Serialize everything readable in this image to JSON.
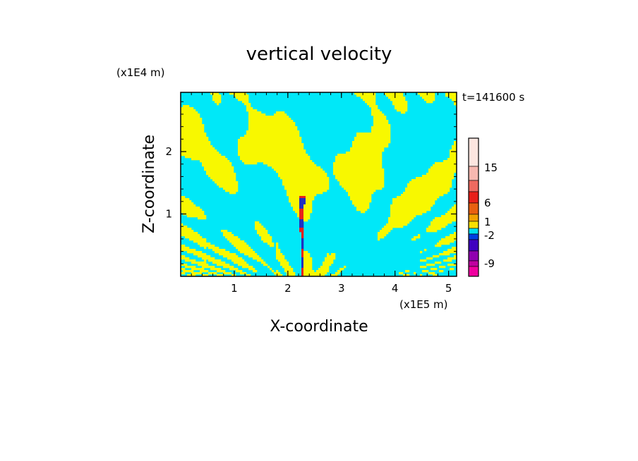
{
  "chart_data": {
    "type": "heatmap",
    "title": "vertical velocity",
    "xlabel": "X-coordinate",
    "ylabel": "Z-coordinate",
    "x_unit": "(x1E5 m)",
    "y_unit": "(x1E4 m)",
    "time_label": "t=141600 s",
    "xlim": [
      0,
      5.15
    ],
    "ylim": [
      0,
      2.95
    ],
    "x_ticks": [
      "1",
      "2",
      "3",
      "4",
      "5"
    ],
    "y_ticks": [
      "1",
      "2"
    ],
    "colorbar": {
      "labels": [
        "15",
        "6",
        "1",
        "-2",
        "-9"
      ],
      "colors": [
        "#fde6e0",
        "#f7b8b0",
        "#ee6a60",
        "#e8201a",
        "#e86010",
        "#f0a000",
        "#f8e000",
        "#00e0f0",
        "#0040e0",
        "#4000c0",
        "#9000b0",
        "#c000a0",
        "#f000a0"
      ]
    },
    "field_colors": {
      "positive": "#f8f800",
      "negative": "#00e8f8",
      "strong_up": "#e8201a",
      "strong_down": "#2030c0"
    }
  }
}
